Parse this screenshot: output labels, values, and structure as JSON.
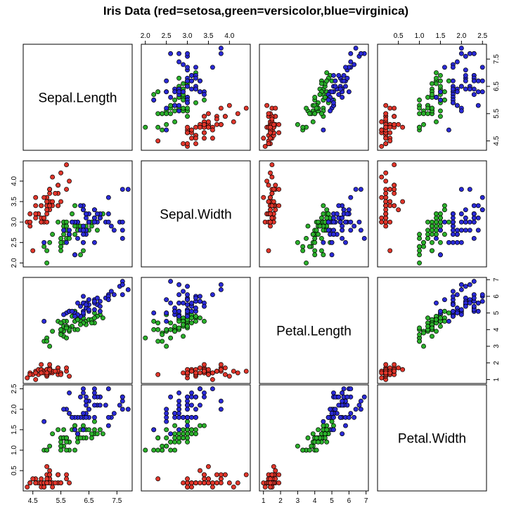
{
  "chart_data": {
    "type": "scatter-matrix",
    "title": "Iris Data (red=setosa,green=versicolor,blue=virginica)",
    "variables": [
      "Sepal.Length",
      "Sepal.Width",
      "Petal.Length",
      "Petal.Width"
    ],
    "ranges": {
      "Sepal.Length": [
        4.3,
        7.9
      ],
      "Sepal.Width": [
        2.0,
        4.4
      ],
      "Petal.Length": [
        1.0,
        6.9
      ],
      "Petal.Width": [
        0.1,
        2.5
      ]
    },
    "ticks": {
      "Sepal.Length": [
        4.5,
        5.5,
        6.5,
        7.5
      ],
      "Sepal.Width": [
        2.0,
        2.5,
        3.0,
        3.5,
        4.0
      ],
      "Petal.Length": [
        1,
        2,
        3,
        4,
        5,
        6,
        7
      ],
      "Petal.Width": [
        0.5,
        1.0,
        1.5,
        2.0,
        2.5
      ]
    },
    "tick_labels": {
      "top": {
        "1": [
          "2.0",
          "2.5",
          "3.0",
          "3.5",
          "4.0"
        ],
        "3": [
          "0.5",
          "1.0",
          "1.5",
          "2.0",
          "2.5"
        ]
      },
      "bottom": {
        "0": [
          "4.5",
          "5.5",
          "6.5",
          "7.5"
        ],
        "2": [
          "1",
          "2",
          "3",
          "4",
          "5",
          "6",
          "7"
        ]
      },
      "left": {
        "1": [
          "2.0",
          "2.5",
          "3.0",
          "3.5",
          "4.0"
        ],
        "3": [
          "0.5",
          "1.0",
          "1.5",
          "2.0",
          "2.5"
        ]
      },
      "right": {
        "0": [
          "4.5",
          "5.5",
          "6.5",
          "7.5"
        ],
        "2": [
          "1",
          "2",
          "3",
          "4",
          "5",
          "6",
          "7"
        ]
      }
    },
    "legend": "none",
    "grid": false,
    "series_colors": {
      "setosa": "#e0362b",
      "versicolor": "#2bb02b",
      "virginica": "#2a2ad6"
    },
    "series": [
      {
        "species": "setosa",
        "points": [
          [
            5.1,
            3.5,
            1.4,
            0.2
          ],
          [
            4.9,
            3.0,
            1.4,
            0.2
          ],
          [
            4.7,
            3.2,
            1.3,
            0.2
          ],
          [
            4.6,
            3.1,
            1.5,
            0.2
          ],
          [
            5.0,
            3.6,
            1.4,
            0.2
          ],
          [
            5.4,
            3.9,
            1.7,
            0.4
          ],
          [
            4.6,
            3.4,
            1.4,
            0.3
          ],
          [
            5.0,
            3.4,
            1.5,
            0.2
          ],
          [
            4.4,
            2.9,
            1.4,
            0.2
          ],
          [
            4.9,
            3.1,
            1.5,
            0.1
          ],
          [
            5.4,
            3.7,
            1.5,
            0.2
          ],
          [
            4.8,
            3.4,
            1.6,
            0.2
          ],
          [
            4.8,
            3.0,
            1.4,
            0.1
          ],
          [
            4.3,
            3.0,
            1.1,
            0.1
          ],
          [
            5.8,
            4.0,
            1.2,
            0.2
          ],
          [
            5.7,
            4.4,
            1.5,
            0.4
          ],
          [
            5.4,
            3.9,
            1.3,
            0.4
          ],
          [
            5.1,
            3.5,
            1.4,
            0.3
          ],
          [
            5.7,
            3.8,
            1.7,
            0.3
          ],
          [
            5.1,
            3.8,
            1.5,
            0.3
          ],
          [
            5.4,
            3.4,
            1.7,
            0.2
          ],
          [
            5.1,
            3.7,
            1.5,
            0.4
          ],
          [
            4.6,
            3.6,
            1.0,
            0.2
          ],
          [
            5.1,
            3.3,
            1.7,
            0.5
          ],
          [
            4.8,
            3.4,
            1.9,
            0.2
          ],
          [
            5.0,
            3.0,
            1.6,
            0.2
          ],
          [
            5.0,
            3.4,
            1.6,
            0.4
          ],
          [
            5.2,
            3.5,
            1.5,
            0.2
          ],
          [
            5.2,
            3.4,
            1.4,
            0.2
          ],
          [
            4.7,
            3.2,
            1.6,
            0.2
          ],
          [
            4.8,
            3.1,
            1.6,
            0.2
          ],
          [
            5.4,
            3.4,
            1.5,
            0.4
          ],
          [
            5.2,
            4.1,
            1.5,
            0.1
          ],
          [
            5.5,
            4.2,
            1.4,
            0.2
          ],
          [
            4.9,
            3.1,
            1.5,
            0.2
          ],
          [
            5.0,
            3.2,
            1.2,
            0.2
          ],
          [
            5.5,
            3.5,
            1.3,
            0.2
          ],
          [
            4.9,
            3.6,
            1.4,
            0.1
          ],
          [
            4.4,
            3.0,
            1.3,
            0.2
          ],
          [
            5.1,
            3.4,
            1.5,
            0.2
          ],
          [
            5.0,
            3.5,
            1.3,
            0.3
          ],
          [
            4.5,
            2.3,
            1.3,
            0.3
          ],
          [
            4.4,
            3.2,
            1.3,
            0.2
          ],
          [
            5.0,
            3.5,
            1.6,
            0.6
          ],
          [
            5.1,
            3.8,
            1.9,
            0.4
          ],
          [
            4.8,
            3.0,
            1.4,
            0.3
          ],
          [
            5.1,
            3.8,
            1.6,
            0.2
          ],
          [
            4.6,
            3.2,
            1.4,
            0.2
          ],
          [
            5.3,
            3.7,
            1.5,
            0.2
          ],
          [
            5.0,
            3.3,
            1.4,
            0.2
          ]
        ]
      },
      {
        "species": "versicolor",
        "points": [
          [
            7.0,
            3.2,
            4.7,
            1.4
          ],
          [
            6.4,
            3.2,
            4.5,
            1.5
          ],
          [
            6.9,
            3.1,
            4.9,
            1.5
          ],
          [
            5.5,
            2.3,
            4.0,
            1.3
          ],
          [
            6.5,
            2.8,
            4.6,
            1.5
          ],
          [
            5.7,
            2.8,
            4.5,
            1.3
          ],
          [
            6.3,
            3.3,
            4.7,
            1.6
          ],
          [
            4.9,
            2.4,
            3.3,
            1.0
          ],
          [
            6.6,
            2.9,
            4.6,
            1.3
          ],
          [
            5.2,
            2.7,
            3.9,
            1.4
          ],
          [
            5.0,
            2.0,
            3.5,
            1.0
          ],
          [
            5.9,
            3.0,
            4.2,
            1.5
          ],
          [
            6.0,
            2.2,
            4.0,
            1.0
          ],
          [
            6.1,
            2.9,
            4.7,
            1.4
          ],
          [
            5.6,
            2.9,
            3.6,
            1.3
          ],
          [
            6.7,
            3.1,
            4.4,
            1.4
          ],
          [
            5.6,
            3.0,
            4.5,
            1.5
          ],
          [
            5.8,
            2.7,
            4.1,
            1.0
          ],
          [
            6.2,
            2.2,
            4.5,
            1.5
          ],
          [
            5.6,
            2.5,
            3.9,
            1.1
          ],
          [
            5.9,
            3.2,
            4.8,
            1.8
          ],
          [
            6.1,
            2.8,
            4.0,
            1.3
          ],
          [
            6.3,
            2.5,
            4.9,
            1.5
          ],
          [
            6.1,
            2.8,
            4.7,
            1.2
          ],
          [
            6.4,
            2.9,
            4.3,
            1.3
          ],
          [
            6.6,
            3.0,
            4.4,
            1.4
          ],
          [
            6.8,
            2.8,
            4.8,
            1.4
          ],
          [
            6.7,
            3.0,
            5.0,
            1.7
          ],
          [
            6.0,
            2.9,
            4.5,
            1.5
          ],
          [
            5.7,
            2.6,
            3.5,
            1.0
          ],
          [
            5.5,
            2.4,
            3.8,
            1.1
          ],
          [
            5.5,
            2.4,
            3.7,
            1.0
          ],
          [
            5.8,
            2.7,
            3.9,
            1.2
          ],
          [
            6.0,
            2.7,
            5.1,
            1.6
          ],
          [
            5.4,
            3.0,
            4.5,
            1.5
          ],
          [
            6.0,
            3.4,
            4.5,
            1.6
          ],
          [
            6.7,
            3.1,
            4.7,
            1.5
          ],
          [
            6.3,
            2.3,
            4.4,
            1.3
          ],
          [
            5.6,
            3.0,
            4.1,
            1.3
          ],
          [
            5.5,
            2.5,
            4.0,
            1.3
          ],
          [
            5.5,
            2.6,
            4.4,
            1.2
          ],
          [
            6.1,
            3.0,
            4.6,
            1.4
          ],
          [
            5.8,
            2.6,
            4.0,
            1.2
          ],
          [
            5.0,
            2.3,
            3.3,
            1.0
          ],
          [
            5.6,
            2.7,
            4.2,
            1.3
          ],
          [
            5.7,
            3.0,
            4.2,
            1.2
          ],
          [
            5.7,
            2.9,
            4.2,
            1.3
          ],
          [
            6.2,
            2.9,
            4.3,
            1.3
          ],
          [
            5.1,
            2.5,
            3.0,
            1.1
          ],
          [
            5.7,
            2.8,
            4.1,
            1.3
          ]
        ]
      },
      {
        "species": "virginica",
        "points": [
          [
            6.3,
            3.3,
            6.0,
            2.5
          ],
          [
            5.8,
            2.7,
            5.1,
            1.9
          ],
          [
            7.1,
            3.0,
            5.9,
            2.1
          ],
          [
            6.3,
            2.9,
            5.6,
            1.8
          ],
          [
            6.5,
            3.0,
            5.8,
            2.2
          ],
          [
            7.6,
            3.0,
            6.6,
            2.1
          ],
          [
            4.9,
            2.5,
            4.5,
            1.7
          ],
          [
            7.3,
            2.9,
            6.3,
            1.8
          ],
          [
            6.7,
            2.5,
            5.8,
            1.8
          ],
          [
            7.2,
            3.6,
            6.1,
            2.5
          ],
          [
            6.5,
            3.2,
            5.1,
            2.0
          ],
          [
            6.4,
            2.7,
            5.3,
            1.9
          ],
          [
            6.8,
            3.0,
            5.5,
            2.1
          ],
          [
            5.7,
            2.5,
            5.0,
            2.0
          ],
          [
            5.8,
            2.8,
            5.1,
            2.4
          ],
          [
            6.4,
            3.2,
            5.3,
            2.3
          ],
          [
            6.5,
            3.0,
            5.5,
            1.8
          ],
          [
            7.7,
            3.8,
            6.7,
            2.2
          ],
          [
            7.7,
            2.6,
            6.9,
            2.3
          ],
          [
            6.0,
            2.2,
            5.0,
            1.5
          ],
          [
            6.9,
            3.2,
            5.7,
            2.3
          ],
          [
            5.6,
            2.8,
            4.9,
            2.0
          ],
          [
            7.7,
            2.8,
            6.7,
            2.0
          ],
          [
            6.3,
            2.7,
            4.9,
            1.8
          ],
          [
            6.7,
            3.3,
            5.7,
            2.1
          ],
          [
            7.2,
            3.2,
            6.0,
            1.8
          ],
          [
            6.2,
            2.8,
            4.8,
            1.8
          ],
          [
            6.1,
            3.0,
            4.9,
            1.8
          ],
          [
            6.4,
            2.8,
            5.6,
            2.1
          ],
          [
            7.2,
            3.0,
            5.8,
            1.6
          ],
          [
            7.4,
            2.8,
            6.1,
            1.9
          ],
          [
            7.9,
            3.8,
            6.4,
            2.0
          ],
          [
            6.4,
            2.8,
            5.6,
            2.2
          ],
          [
            6.3,
            2.8,
            5.1,
            1.5
          ],
          [
            6.1,
            2.6,
            5.6,
            1.4
          ],
          [
            7.7,
            3.0,
            6.1,
            2.3
          ],
          [
            6.3,
            3.4,
            5.6,
            2.4
          ],
          [
            6.4,
            3.1,
            5.5,
            1.8
          ],
          [
            6.0,
            3.0,
            4.8,
            1.8
          ],
          [
            6.9,
            3.1,
            5.4,
            2.1
          ],
          [
            6.7,
            3.1,
            5.6,
            2.4
          ],
          [
            6.9,
            3.1,
            5.1,
            2.3
          ],
          [
            5.8,
            2.7,
            5.1,
            1.9
          ],
          [
            6.8,
            3.2,
            5.9,
            2.3
          ],
          [
            6.7,
            3.3,
            5.7,
            2.5
          ],
          [
            6.7,
            3.0,
            5.2,
            2.3
          ],
          [
            6.3,
            2.5,
            5.0,
            1.9
          ],
          [
            6.5,
            3.0,
            5.2,
            2.0
          ],
          [
            6.2,
            3.4,
            5.4,
            2.3
          ],
          [
            5.9,
            3.0,
            5.1,
            1.8
          ]
        ]
      }
    ]
  }
}
